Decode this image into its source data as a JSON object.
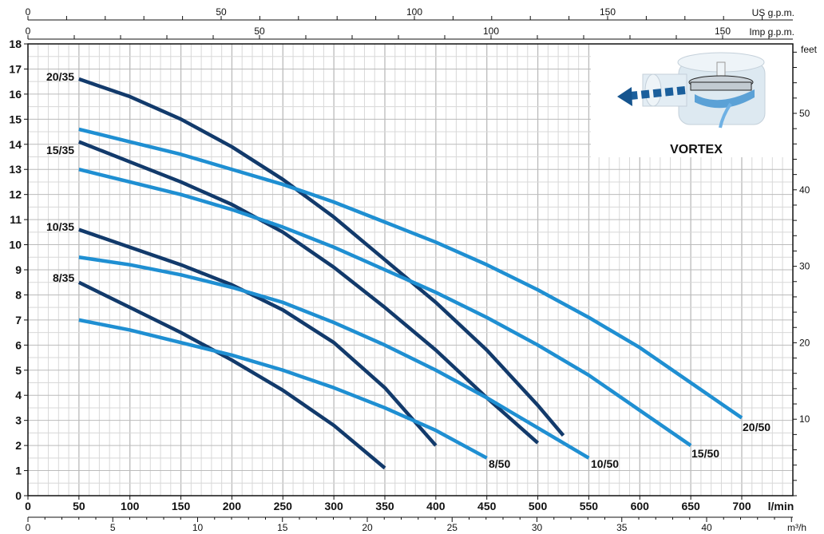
{
  "chart_data": {
    "type": "line",
    "title": "",
    "xlabel": "l/min",
    "ylabel": "",
    "xlim": [
      0,
      750
    ],
    "ylim": [
      0,
      18
    ],
    "grid": true,
    "x_ticks": [
      0,
      50,
      100,
      150,
      200,
      250,
      300,
      350,
      400,
      450,
      500,
      550,
      600,
      650,
      700
    ],
    "y_ticks": [
      0,
      1,
      2,
      3,
      4,
      5,
      6,
      7,
      8,
      9,
      10,
      11,
      12,
      13,
      14,
      15,
      16,
      17,
      18
    ],
    "secondary_axes": {
      "us_gpm": {
        "label": "US g.p.m.",
        "ticks": [
          0,
          50,
          100,
          150
        ]
      },
      "imp_gpm": {
        "label": "Imp g.p.m.",
        "ticks": [
          0,
          50,
          100,
          150
        ]
      },
      "m3h": {
        "label": "m³/h",
        "ticks": [
          0,
          5,
          10,
          15,
          20,
          25,
          30,
          35,
          40
        ]
      },
      "feet": {
        "label": "feet",
        "ticks": [
          10,
          20,
          30,
          40,
          50
        ]
      }
    },
    "series": [
      {
        "name": "20/35",
        "color": "#123a6b",
        "x": [
          50,
          100,
          150,
          200,
          250,
          300,
          350,
          400,
          450,
          500,
          525
        ],
        "y": [
          16.6,
          15.9,
          15.0,
          13.9,
          12.6,
          11.1,
          9.4,
          7.7,
          5.8,
          3.6,
          2.4
        ]
      },
      {
        "name": "15/35",
        "color": "#123a6b",
        "x": [
          50,
          100,
          150,
          200,
          250,
          300,
          350,
          400,
          450,
          500
        ],
        "y": [
          14.1,
          13.3,
          12.5,
          11.6,
          10.5,
          9.1,
          7.5,
          5.8,
          3.9,
          2.1
        ]
      },
      {
        "name": "10/35",
        "color": "#123a6b",
        "x": [
          50,
          100,
          150,
          200,
          250,
          300,
          350,
          400
        ],
        "y": [
          10.6,
          9.9,
          9.2,
          8.4,
          7.4,
          6.1,
          4.3,
          2.0
        ]
      },
      {
        "name": "8/35",
        "color": "#123a6b",
        "x": [
          50,
          100,
          150,
          200,
          250,
          300,
          350
        ],
        "y": [
          8.5,
          7.5,
          6.5,
          5.4,
          4.2,
          2.8,
          1.1
        ]
      },
      {
        "name": "20/50",
        "color": "#1f8fd2",
        "x": [
          50,
          100,
          150,
          200,
          250,
          300,
          350,
          400,
          450,
          500,
          550,
          600,
          650,
          700
        ],
        "y": [
          14.6,
          14.1,
          13.6,
          13.0,
          12.4,
          11.7,
          10.9,
          10.1,
          9.2,
          8.2,
          7.1,
          5.9,
          4.5,
          3.1
        ]
      },
      {
        "name": "15/50",
        "color": "#1f8fd2",
        "x": [
          50,
          100,
          150,
          200,
          250,
          300,
          350,
          400,
          450,
          500,
          550,
          600,
          650
        ],
        "y": [
          13.0,
          12.5,
          12.0,
          11.4,
          10.7,
          9.9,
          9.0,
          8.1,
          7.1,
          6.0,
          4.8,
          3.4,
          2.0
        ]
      },
      {
        "name": "10/50",
        "color": "#1f8fd2",
        "x": [
          50,
          100,
          150,
          200,
          250,
          300,
          350,
          400,
          450,
          500,
          550
        ],
        "y": [
          9.5,
          9.2,
          8.8,
          8.3,
          7.7,
          6.9,
          6.0,
          5.0,
          3.9,
          2.7,
          1.5
        ]
      },
      {
        "name": "8/50",
        "color": "#1f8fd2",
        "x": [
          50,
          100,
          150,
          200,
          250,
          300,
          350,
          400,
          450
        ],
        "y": [
          7.0,
          6.6,
          6.1,
          5.6,
          5.0,
          4.3,
          3.5,
          2.6,
          1.5
        ]
      }
    ],
    "inset_label": "VORTEX"
  }
}
